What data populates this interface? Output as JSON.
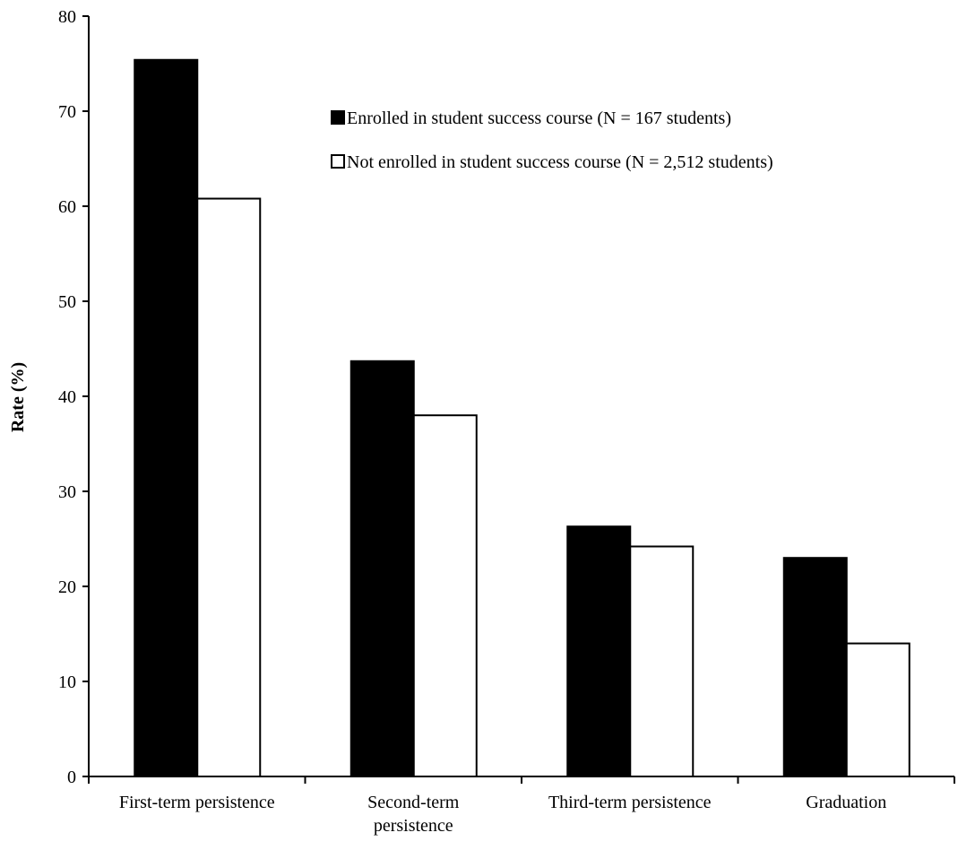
{
  "chart_data": {
    "type": "bar",
    "categories": [
      [
        "First-term persistence"
      ],
      [
        "Second-term",
        "persistence"
      ],
      [
        "Third-term persistence"
      ],
      [
        "Graduation"
      ]
    ],
    "series": [
      {
        "name": "Enrolled in student success course (N = 167 students)",
        "values": [
          75.4,
          43.7,
          26.3,
          23.0
        ],
        "color": "#000000"
      },
      {
        "name": "Not enrolled in student success course (N = 2,512 students)",
        "values": [
          60.8,
          38.0,
          24.2,
          14.0
        ],
        "color": "#ffffff"
      }
    ],
    "title": "",
    "xlabel": "",
    "ylabel": "Rate (%)",
    "ylim": [
      0,
      80
    ],
    "yticks": [
      0,
      10,
      20,
      30,
      40,
      50,
      60,
      70,
      80
    ],
    "grid": false,
    "legend_position": "top-right"
  }
}
